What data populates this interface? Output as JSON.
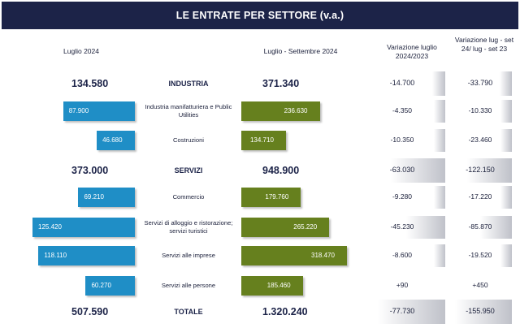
{
  "title": "LE ENTRATE PER SETTORE (v.a.)",
  "headers": {
    "col1": "Luglio 2024",
    "col2": "Luglio  - Settembre 2024",
    "col3": "Variazione luglio 2024/2023",
    "col4": "Variazione lug - set 24/ lug - set 23"
  },
  "chart_data": {
    "type": "bar",
    "rows": [
      {
        "label": "INDUSTRIA",
        "kind": "sector",
        "luglio": "134.580",
        "luglio_value": 134580,
        "trimestre": "371.340",
        "trimestre_value": 371340,
        "var_luglio": "-14.700",
        "var_luglio_value": -14700,
        "var_trim": "-33.790",
        "var_trim_value": -33790
      },
      {
        "label": "Industria manifatturiera e Public Utilities",
        "kind": "sub",
        "luglio": "87.900",
        "luglio_value": 87900,
        "trimestre": "236.630",
        "trimestre_value": 236630,
        "var_luglio": "-4.350",
        "var_luglio_value": -4350,
        "var_trim": "-10.330",
        "var_trim_value": -10330
      },
      {
        "label": "Costruzioni",
        "kind": "sub",
        "luglio": "46.680",
        "luglio_value": 46680,
        "trimestre": "134.710",
        "trimestre_value": 134710,
        "var_luglio": "-10.350",
        "var_luglio_value": -10350,
        "var_trim": "-23.460",
        "var_trim_value": -23460
      },
      {
        "label": "SERVIZI",
        "kind": "sector",
        "luglio": "373.000",
        "luglio_value": 373000,
        "trimestre": "948.900",
        "trimestre_value": 948900,
        "var_luglio": "-63.030",
        "var_luglio_value": -63030,
        "var_trim": "-122.150",
        "var_trim_value": -122150
      },
      {
        "label": "Commercio",
        "kind": "sub",
        "luglio": "69.210",
        "luglio_value": 69210,
        "trimestre": "179.760",
        "trimestre_value": 179760,
        "var_luglio": "-9.280",
        "var_luglio_value": -9280,
        "var_trim": "-17.220",
        "var_trim_value": -17220
      },
      {
        "label": "Servizi di alloggio e ristorazione; servizi turistici",
        "kind": "sub",
        "luglio": "125.420",
        "luglio_value": 125420,
        "trimestre": "265.220",
        "trimestre_value": 265220,
        "var_luglio": "-45.230",
        "var_luglio_value": -45230,
        "var_trim": "-85.870",
        "var_trim_value": -85870
      },
      {
        "label": "Servizi alle imprese",
        "kind": "sub",
        "luglio": "118.110",
        "luglio_value": 118110,
        "trimestre": "318.470",
        "trimestre_value": 318470,
        "var_luglio": "-8.600",
        "var_luglio_value": -8600,
        "var_trim": "-19.520",
        "var_trim_value": -19520
      },
      {
        "label": "Servizi alle persone",
        "kind": "sub",
        "luglio": "60.270",
        "luglio_value": 60270,
        "trimestre": "185.460",
        "trimestre_value": 185460,
        "var_luglio": "+90",
        "var_luglio_value": 90,
        "var_trim": "+450",
        "var_trim_value": 450
      },
      {
        "label": "TOTALE",
        "kind": "total",
        "luglio": "507.590",
        "luglio_value": 507590,
        "trimestre": "1.320.240",
        "trimestre_value": 1320240,
        "var_luglio": "-77.730",
        "var_luglio_value": -77730,
        "var_trim": "-155.950",
        "var_trim_value": -155950
      }
    ]
  },
  "colors": {
    "title_bg": "#1c2348",
    "luglio_bar": "#1f8ec6",
    "trimestre_bar": "#66801e",
    "variation_shade": "#bfc1c9"
  }
}
